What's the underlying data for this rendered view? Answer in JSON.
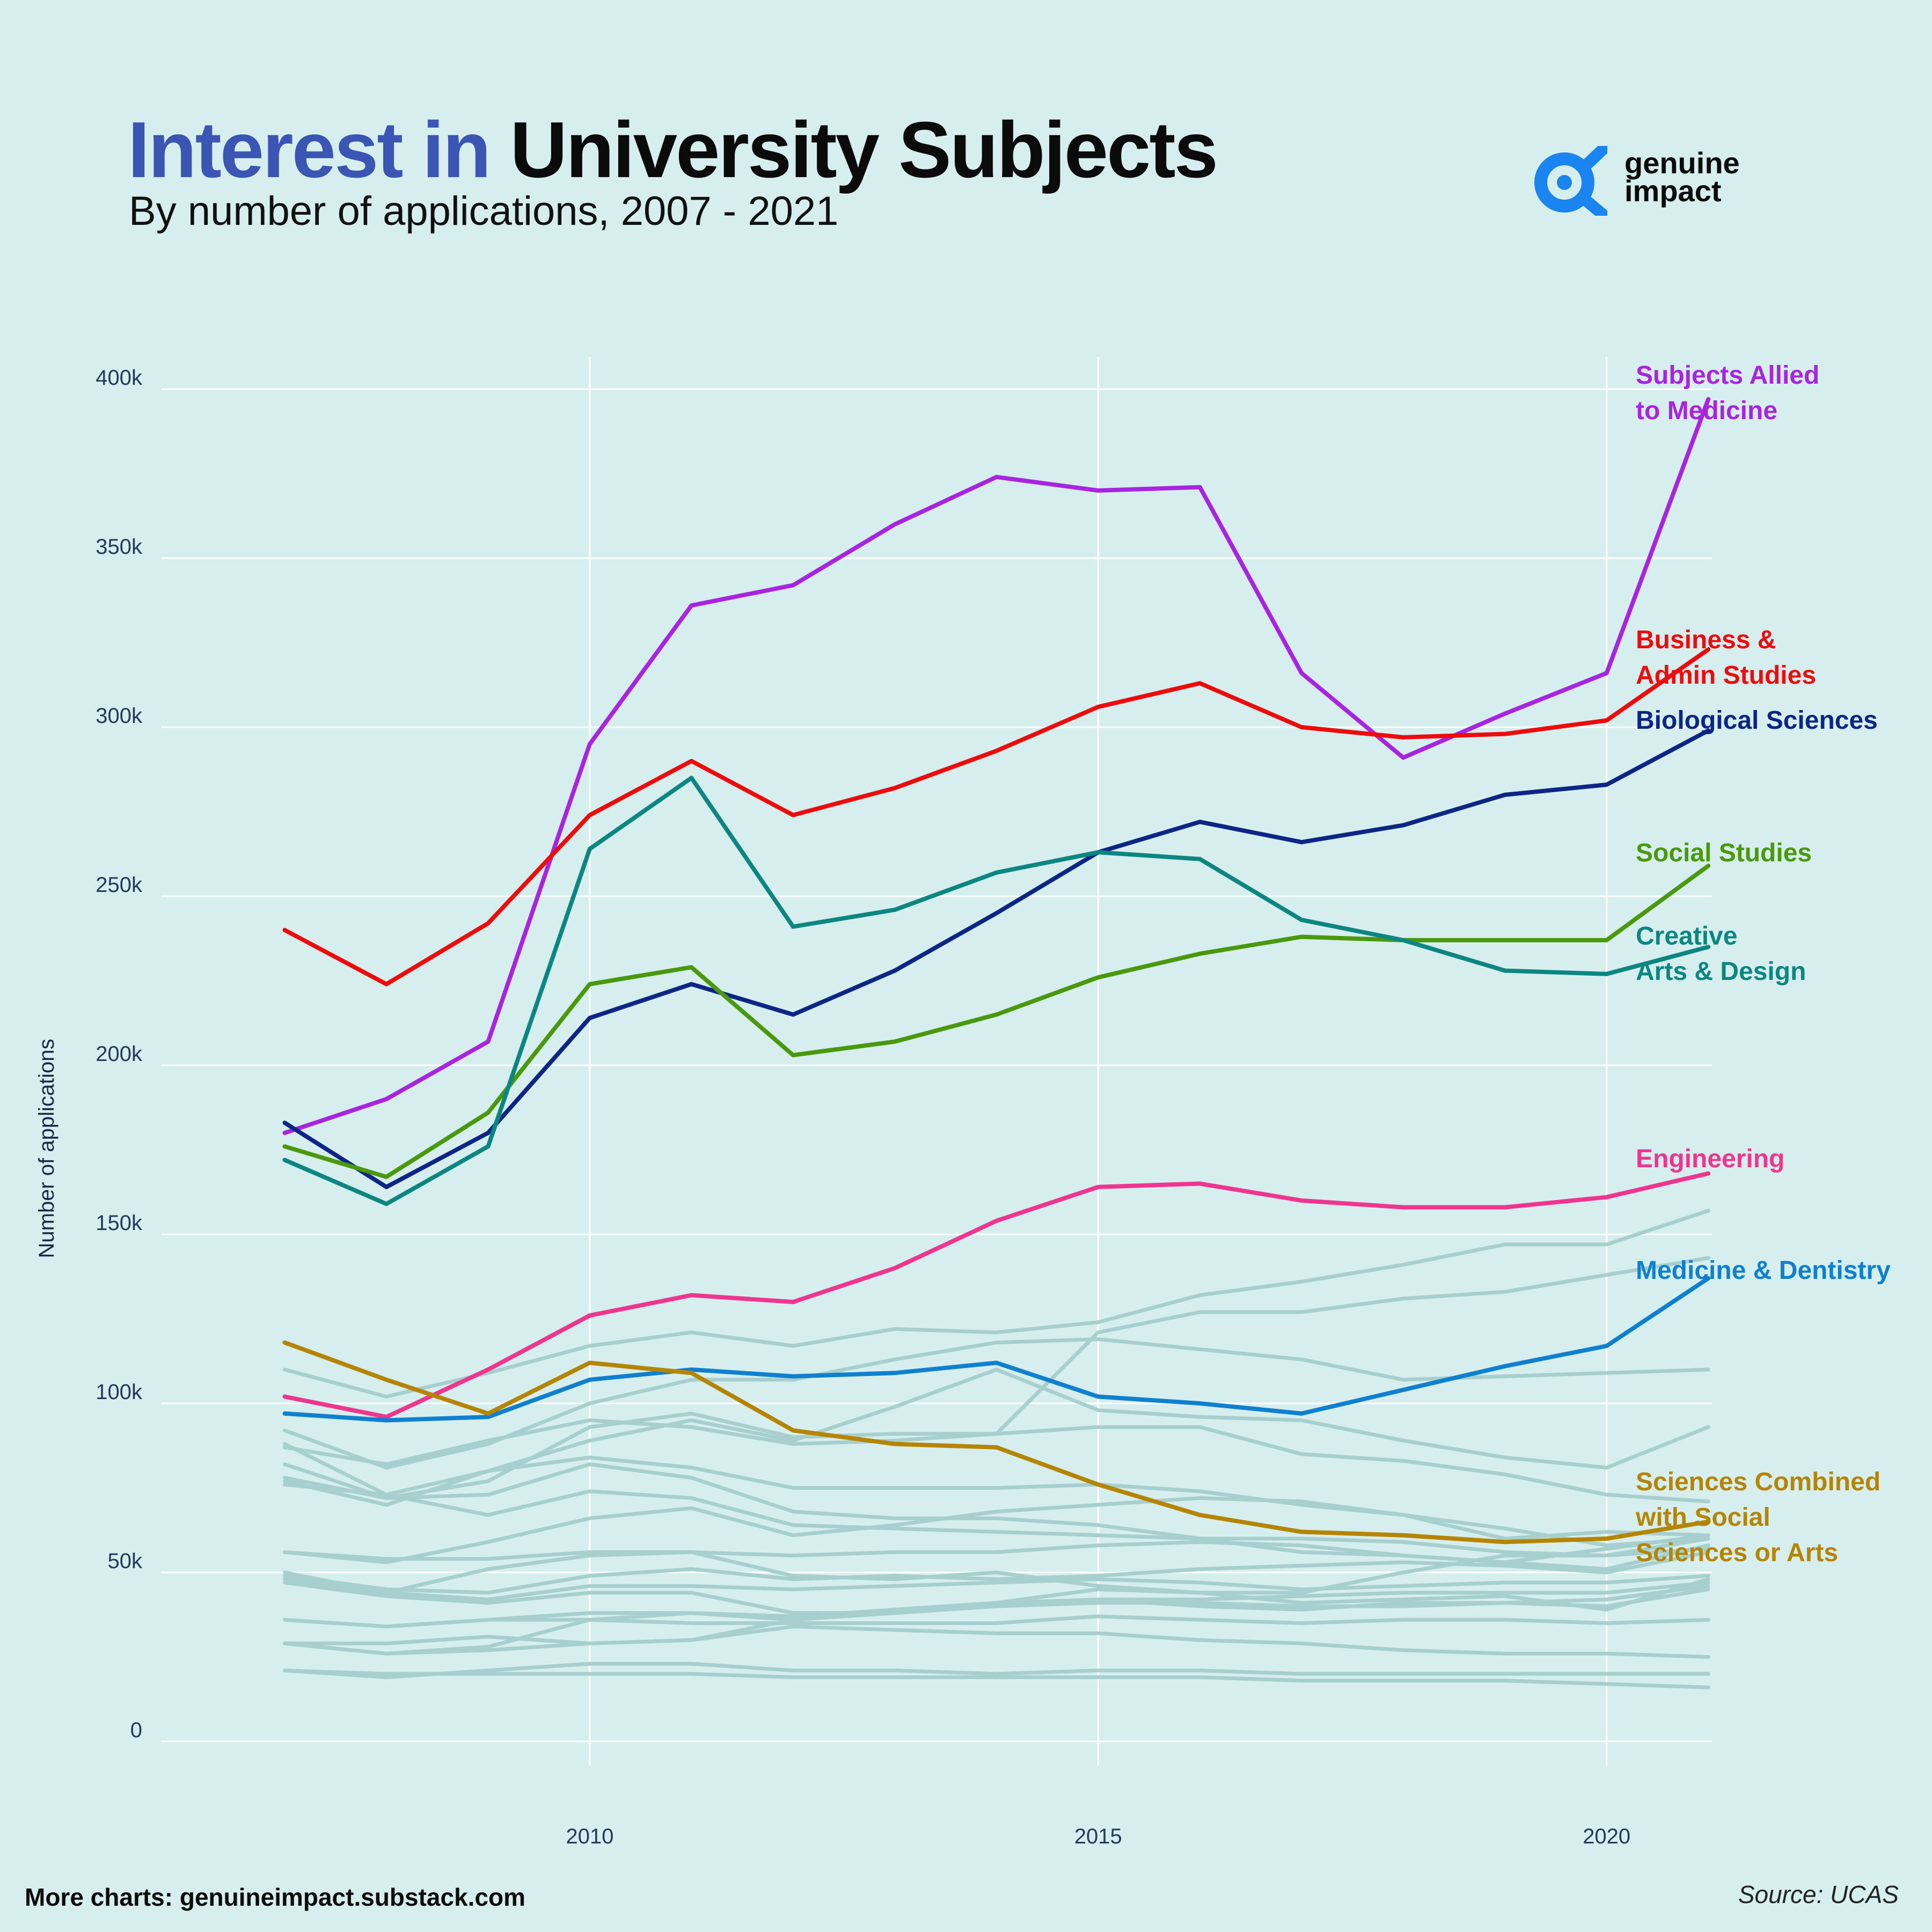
{
  "header": {
    "title_part1": "Interest in",
    "title_part2": "University Subjects",
    "subtitle": "By number of applications, 2007 - 2021"
  },
  "logo": {
    "line1": "genuine",
    "line2": "impact",
    "icon": "alpha-eye-icon",
    "color": "#1a84f0"
  },
  "footer": {
    "left": "More charts: genuineimpact.substack.com",
    "right": "Source: UCAS"
  },
  "chart_data": {
    "type": "line",
    "title": "Interest in University Subjects",
    "subtitle": "By number of applications, 2007 - 2021",
    "xlabel": "",
    "ylabel": "Number of applications",
    "x": [
      2007,
      2008,
      2009,
      2010,
      2011,
      2012,
      2013,
      2014,
      2015,
      2016,
      2017,
      2018,
      2019,
      2020,
      2021
    ],
    "xlim": [
      2004.2,
      2023.2
    ],
    "ylim": [
      0,
      400000
    ],
    "x_ticks": [
      2010,
      2015,
      2020
    ],
    "y_ticks": [
      0,
      50000,
      100000,
      150000,
      200000,
      250000,
      300000,
      350000,
      400000
    ],
    "y_tick_labels": [
      "0",
      "50k",
      "100k",
      "150k",
      "200k",
      "250k",
      "300k",
      "350k",
      "400k"
    ],
    "grid": true,
    "legend": "direct labels at line ends (right)",
    "series": [
      {
        "name": "Subjects Allied to Medicine",
        "label_lines": [
          "Subjects Allied",
          "to Medicine"
        ],
        "color": "#a824e0",
        "values": [
          180000,
          190000,
          207000,
          295000,
          336000,
          342000,
          360000,
          374000,
          370000,
          371000,
          316000,
          291000,
          304000,
          316000,
          397000
        ]
      },
      {
        "name": "Business & Admin Studies",
        "label_lines": [
          "Business &",
          "Admin Studies"
        ],
        "color": "#ee0b0b",
        "values": [
          240000,
          224000,
          242000,
          274000,
          290000,
          274000,
          282000,
          293000,
          306000,
          313000,
          300000,
          297000,
          298000,
          302000,
          323000
        ]
      },
      {
        "name": "Biological Sciences",
        "label_lines": [
          "Biological Sciences"
        ],
        "color": "#0d2585",
        "values": [
          183000,
          164000,
          180000,
          214000,
          224000,
          215000,
          228000,
          245000,
          263000,
          272000,
          266000,
          271000,
          280000,
          283000,
          299000
        ]
      },
      {
        "name": "Social Studies",
        "label_lines": [
          "Social Studies"
        ],
        "color": "#4a990d",
        "values": [
          176000,
          167000,
          186000,
          224000,
          229000,
          203000,
          207000,
          215000,
          226000,
          233000,
          238000,
          237000,
          237000,
          237000,
          259000
        ]
      },
      {
        "name": "Creative Arts & Design",
        "label_lines": [
          "Creative",
          "Arts & Design"
        ],
        "color": "#0c8680",
        "values": [
          172000,
          159000,
          176000,
          264000,
          285000,
          241000,
          246000,
          257000,
          263000,
          261000,
          243000,
          237000,
          228000,
          227000,
          235000
        ]
      },
      {
        "name": "Engineering",
        "label_lines": [
          "Engineering"
        ],
        "color": "#f0358e",
        "values": [
          102000,
          96000,
          110000,
          126000,
          132000,
          130000,
          140000,
          154000,
          164000,
          165000,
          160000,
          158000,
          158000,
          161000,
          168000
        ]
      },
      {
        "name": "Medicine & Dentistry",
        "label_lines": [
          "Medicine & Dentistry"
        ],
        "color": "#0f7fd0",
        "values": [
          97000,
          95000,
          96000,
          107000,
          110000,
          108000,
          109000,
          112000,
          102000,
          100000,
          97000,
          104000,
          111000,
          117000,
          137000
        ]
      },
      {
        "name": "Sciences Combined with Social Sciences or Arts",
        "label_lines": [
          "Sciences Combined",
          "with Social",
          "Sciences or Arts"
        ],
        "color": "#b58500",
        "values": [
          118000,
          107000,
          97000,
          112000,
          109000,
          92000,
          88000,
          87000,
          76000,
          67000,
          62000,
          61000,
          59000,
          60000,
          65000
        ]
      }
    ],
    "background_series_color": "#a6cfcd",
    "background_series": [
      [
        87000,
        82000,
        89000,
        95000,
        93000,
        88000,
        89000,
        91000,
        121000,
        127000,
        127000,
        131000,
        133000,
        138000,
        143000
      ],
      [
        110000,
        102000,
        109000,
        117000,
        121000,
        117000,
        122000,
        121000,
        124000,
        132000,
        136000,
        141000,
        147000,
        147000,
        157000
      ],
      [
        92000,
        81000,
        88000,
        100000,
        107000,
        107000,
        113000,
        118000,
        119000,
        116000,
        113000,
        107000,
        108000,
        109000,
        110000
      ],
      [
        88000,
        73000,
        80000,
        89000,
        95000,
        89000,
        99000,
        110000,
        98000,
        96000,
        95000,
        89000,
        84000,
        81000,
        93000
      ],
      [
        82000,
        72000,
        77000,
        93000,
        97000,
        90000,
        91000,
        91000,
        93000,
        93000,
        85000,
        83000,
        79000,
        73000,
        71000
      ],
      [
        78000,
        72000,
        73000,
        82000,
        78000,
        68000,
        66000,
        66000,
        64000,
        60000,
        56000,
        55000,
        53000,
        51000,
        58000
      ],
      [
        77000,
        70000,
        80000,
        84000,
        81000,
        75000,
        75000,
        75000,
        76000,
        74000,
        70000,
        67000,
        63000,
        58000,
        60000
      ],
      [
        76000,
        73000,
        67000,
        74000,
        72000,
        64000,
        63000,
        62000,
        61000,
        60000,
        60000,
        59000,
        56000,
        55000,
        57000
      ],
      [
        56000,
        53000,
        59000,
        66000,
        69000,
        61000,
        64000,
        68000,
        70000,
        72000,
        71000,
        67000,
        60000,
        62000,
        61000
      ],
      [
        56000,
        54000,
        54000,
        56000,
        56000,
        55000,
        56000,
        56000,
        58000,
        59000,
        58000,
        55000,
        53000,
        57000,
        61000
      ],
      [
        50000,
        44000,
        51000,
        55000,
        56000,
        49000,
        48000,
        50000,
        46000,
        44000,
        44000,
        50000,
        55000,
        55000,
        60000
      ],
      [
        49000,
        45000,
        44000,
        49000,
        51000,
        48000,
        49000,
        48000,
        49000,
        51000,
        52000,
        53000,
        52000,
        50000,
        56000
      ],
      [
        48000,
        44000,
        42000,
        46000,
        46000,
        45000,
        46000,
        47000,
        48000,
        47000,
        45000,
        46000,
        47000,
        47000,
        49000
      ],
      [
        47000,
        43000,
        41000,
        44000,
        44000,
        38000,
        38000,
        41000,
        45000,
        44000,
        41000,
        42000,
        43000,
        39000,
        48000
      ],
      [
        36000,
        34000,
        36000,
        38000,
        38000,
        37000,
        39000,
        40000,
        42000,
        42000,
        43000,
        44000,
        44000,
        44000,
        47000
      ],
      [
        36000,
        34000,
        36000,
        36000,
        35000,
        35000,
        35000,
        35000,
        37000,
        36000,
        35000,
        36000,
        36000,
        35000,
        36000
      ],
      [
        29000,
        26000,
        28000,
        36000,
        38000,
        36000,
        38000,
        40000,
        41000,
        41000,
        40000,
        40000,
        41000,
        42000,
        46000
      ],
      [
        29000,
        29000,
        31000,
        29000,
        30000,
        36000,
        39000,
        41000,
        42000,
        40000,
        39000,
        41000,
        41000,
        40000,
        45000
      ],
      [
        21000,
        19000,
        21000,
        23000,
        23000,
        21000,
        21000,
        20000,
        21000,
        21000,
        20000,
        20000,
        20000,
        20000,
        20000
      ],
      [
        21000,
        20000,
        20000,
        20000,
        20000,
        19000,
        19000,
        19000,
        19000,
        19000,
        18000,
        18000,
        18000,
        17000,
        16000
      ],
      [
        29000,
        26000,
        27000,
        29000,
        30000,
        34000,
        33000,
        32000,
        32000,
        30000,
        29000,
        27000,
        26000,
        26000,
        25000
      ]
    ]
  }
}
